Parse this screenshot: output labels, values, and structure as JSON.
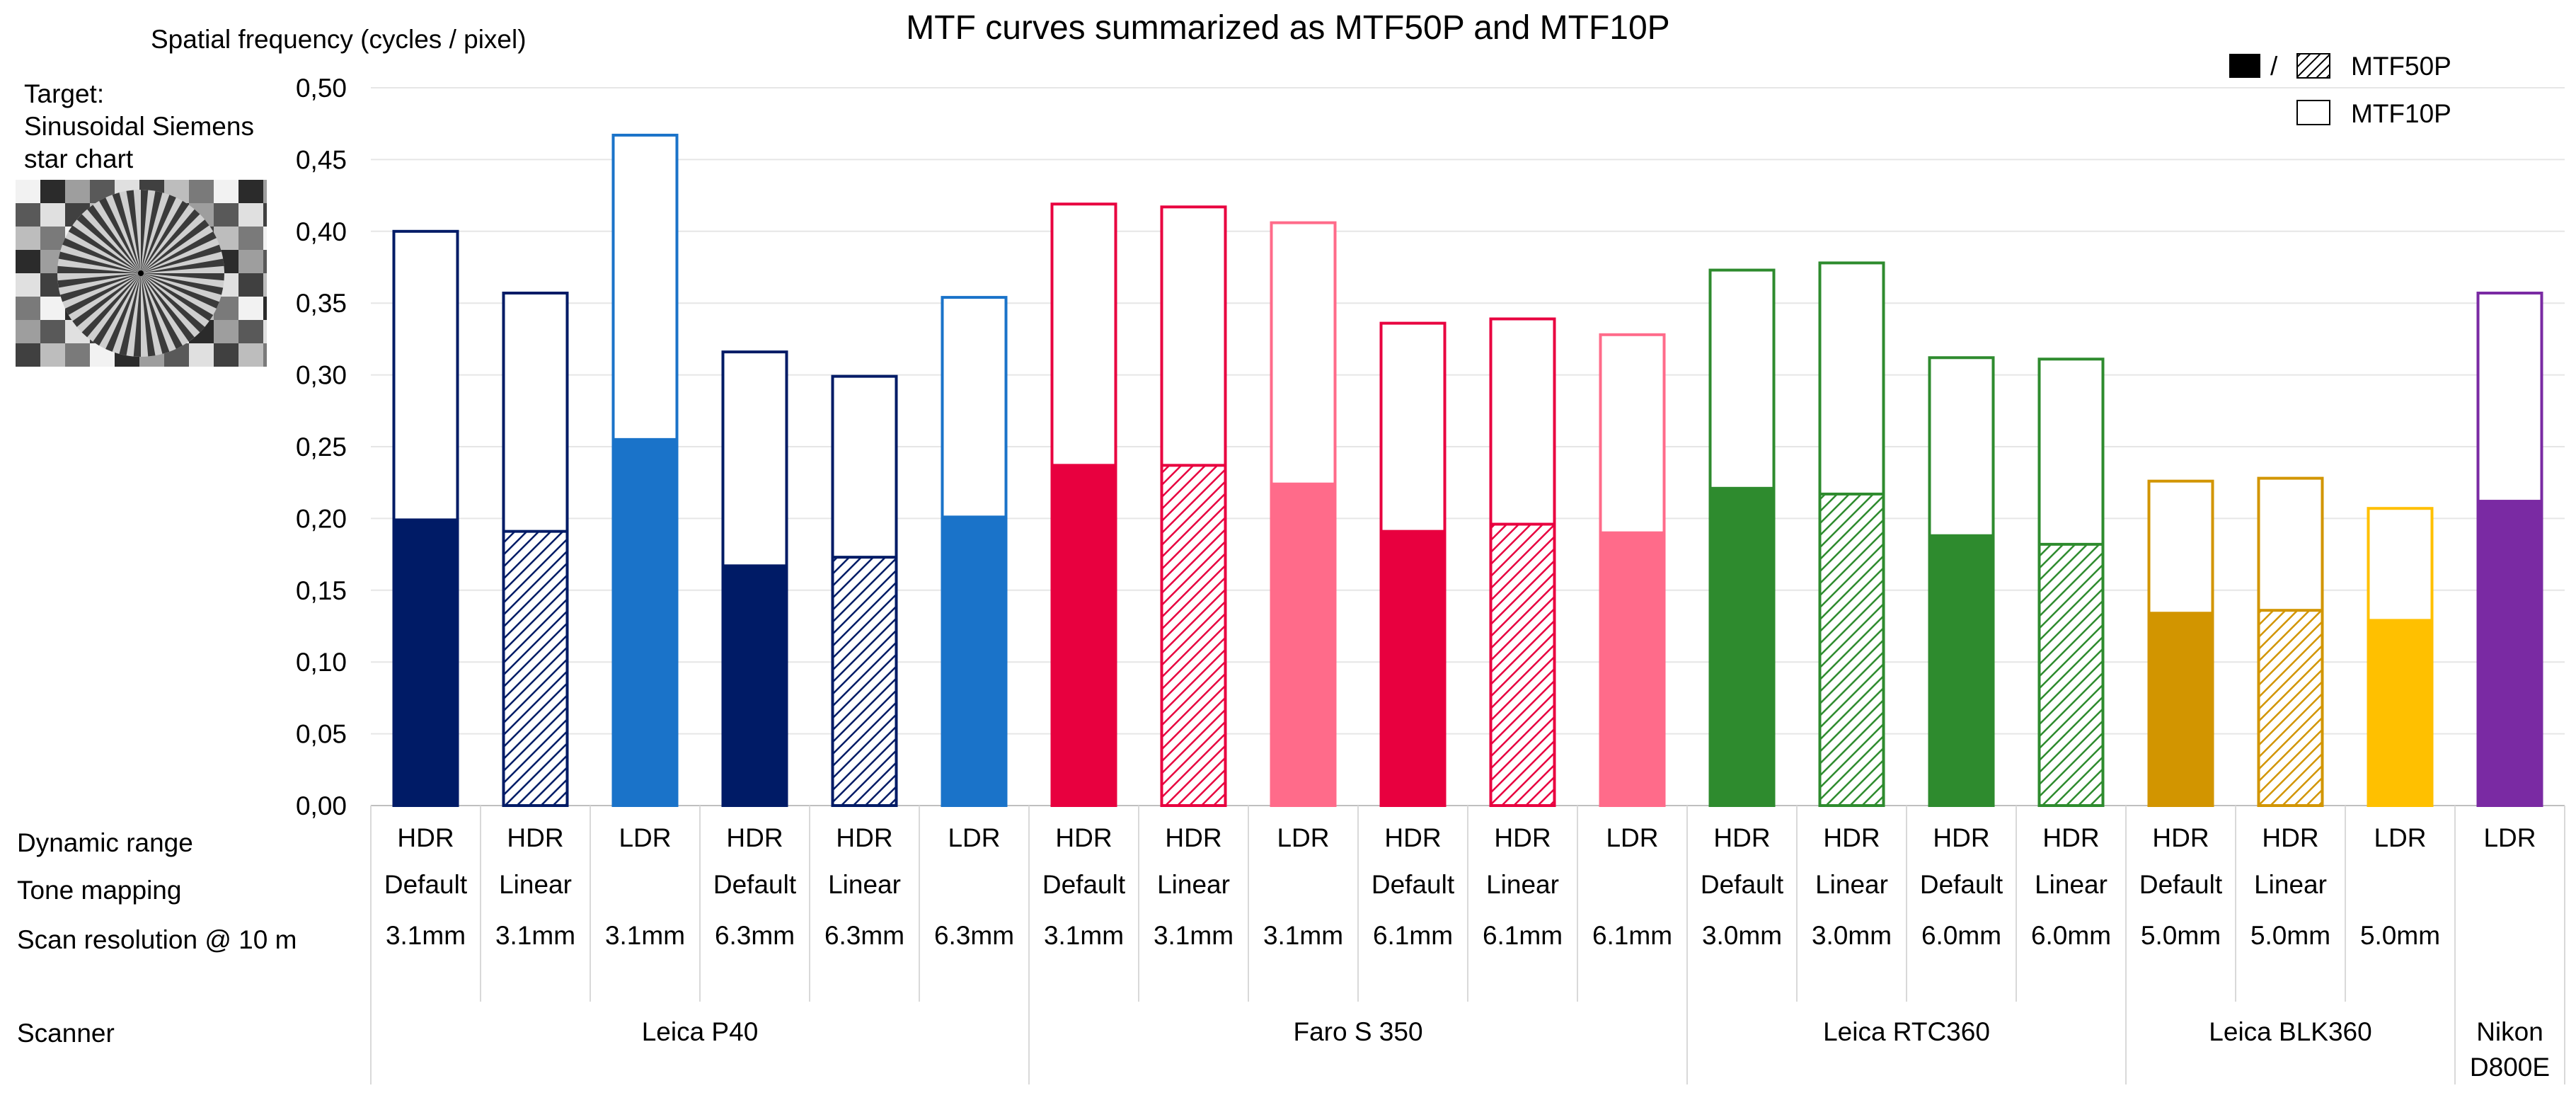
{
  "title": "MTF curves summarized as MTF50P and MTF10P",
  "ylabel": "Spatial frequency (cycles / pixel)",
  "target": {
    "label": "Target:",
    "line1": "Sinusoidal Siemens",
    "line2": "star chart"
  },
  "legend": {
    "separator": "/",
    "mtf50": "MTF50P",
    "mtf10": "MTF10P"
  },
  "row_labels": {
    "dynamic_range": "Dynamic range",
    "tone_mapping": "Tone mapping",
    "scan_resolution": "Scan resolution @ 10 m",
    "scanner": "Scanner"
  },
  "colors": {
    "navy": "#001b66",
    "blue": "#1a73c9",
    "crimson": "#e8003f",
    "pink": "#ff6b8a",
    "green": "#2e8b2e",
    "gold": "#d29500",
    "yellow": "#ffc000",
    "purple": "#7a2aa3"
  },
  "chart_data": {
    "type": "bar",
    "title": "MTF curves summarized as MTF50P and MTF10P",
    "ylabel": "Spatial frequency (cycles / pixel)",
    "ylim": [
      0,
      0.5
    ],
    "yticks": [
      "0,00",
      "0,05",
      "0,10",
      "0,15",
      "0,20",
      "0,25",
      "0,30",
      "0,35",
      "0,40",
      "0,45",
      "0,50"
    ],
    "series": [
      {
        "name": "MTF50P",
        "values": [
          0.199,
          0.191,
          0.255,
          0.167,
          0.173,
          0.201,
          0.237,
          0.237,
          0.224,
          0.191,
          0.196,
          0.19,
          0.221,
          0.217,
          0.188,
          0.182,
          0.134,
          0.136,
          0.129,
          0.212
        ]
      },
      {
        "name": "MTF10P",
        "values": [
          0.4,
          0.357,
          0.467,
          0.316,
          0.299,
          0.354,
          0.419,
          0.417,
          0.406,
          0.336,
          0.339,
          0.328,
          0.373,
          0.378,
          0.312,
          0.311,
          0.226,
          0.228,
          0.207,
          0.357
        ]
      }
    ],
    "bars": [
      {
        "dr": "HDR",
        "tm": "Default",
        "res": "3.1mm",
        "color": "navy",
        "hatch": false
      },
      {
        "dr": "HDR",
        "tm": "Linear",
        "res": "3.1mm",
        "color": "navy",
        "hatch": true
      },
      {
        "dr": "LDR",
        "tm": "",
        "res": "3.1mm",
        "color": "blue",
        "hatch": false
      },
      {
        "dr": "HDR",
        "tm": "Default",
        "res": "6.3mm",
        "color": "navy",
        "hatch": false
      },
      {
        "dr": "HDR",
        "tm": "Linear",
        "res": "6.3mm",
        "color": "navy",
        "hatch": true
      },
      {
        "dr": "LDR",
        "tm": "",
        "res": "6.3mm",
        "color": "blue",
        "hatch": false
      },
      {
        "dr": "HDR",
        "tm": "Default",
        "res": "3.1mm",
        "color": "crimson",
        "hatch": false
      },
      {
        "dr": "HDR",
        "tm": "Linear",
        "res": "3.1mm",
        "color": "crimson",
        "hatch": true
      },
      {
        "dr": "LDR",
        "tm": "",
        "res": "3.1mm",
        "color": "pink",
        "hatch": false
      },
      {
        "dr": "HDR",
        "tm": "Default",
        "res": "6.1mm",
        "color": "crimson",
        "hatch": false
      },
      {
        "dr": "HDR",
        "tm": "Linear",
        "res": "6.1mm",
        "color": "crimson",
        "hatch": true
      },
      {
        "dr": "LDR",
        "tm": "",
        "res": "6.1mm",
        "color": "pink",
        "hatch": false
      },
      {
        "dr": "HDR",
        "tm": "Default",
        "res": "3.0mm",
        "color": "green",
        "hatch": false
      },
      {
        "dr": "HDR",
        "tm": "Linear",
        "res": "3.0mm",
        "color": "green",
        "hatch": true
      },
      {
        "dr": "HDR",
        "tm": "Default",
        "res": "6.0mm",
        "color": "green",
        "hatch": false
      },
      {
        "dr": "HDR",
        "tm": "Linear",
        "res": "6.0mm",
        "color": "green",
        "hatch": true
      },
      {
        "dr": "HDR",
        "tm": "Default",
        "res": "5.0mm",
        "color": "gold",
        "hatch": false
      },
      {
        "dr": "HDR",
        "tm": "Linear",
        "res": "5.0mm",
        "color": "gold",
        "hatch": true
      },
      {
        "dr": "LDR",
        "tm": "",
        "res": "5.0mm",
        "color": "yellow",
        "hatch": false
      },
      {
        "dr": "LDR",
        "tm": "",
        "res": "",
        "color": "purple",
        "hatch": false
      }
    ],
    "scanners": [
      {
        "name": "Leica P40",
        "start": 0,
        "end": 5
      },
      {
        "name": "Faro S 350",
        "start": 6,
        "end": 11
      },
      {
        "name": "Leica RTC360",
        "start": 12,
        "end": 15
      },
      {
        "name": "Leica BLK360",
        "start": 16,
        "end": 18
      },
      {
        "name": "Nikon D800E",
        "start": 19,
        "end": 19
      }
    ]
  }
}
